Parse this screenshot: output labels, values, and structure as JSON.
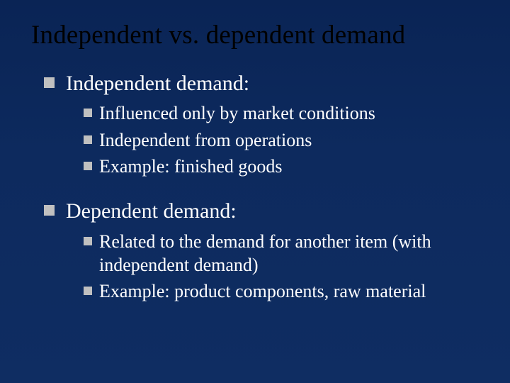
{
  "colors": {
    "slide_bg_top": "#0a2455",
    "slide_bg_bottom": "#0f2d62",
    "title_color": "#000000",
    "body_text_color": "#ffffff",
    "bullet_color": "#c0c0c0"
  },
  "typography": {
    "font_family": "Times New Roman",
    "title_fontsize_pt": 37,
    "level1_fontsize_pt": 30,
    "level2_fontsize_pt": 26
  },
  "title": "Independent vs. dependent demand",
  "sections": [
    {
      "heading": "Independent demand:",
      "items": [
        "Influenced only by market conditions",
        "Independent from operations",
        "Example: finished goods"
      ]
    },
    {
      "heading": "Dependent demand:",
      "items": [
        "Related to the demand for another item (with independent demand)",
        "Example: product components, raw material"
      ]
    }
  ]
}
